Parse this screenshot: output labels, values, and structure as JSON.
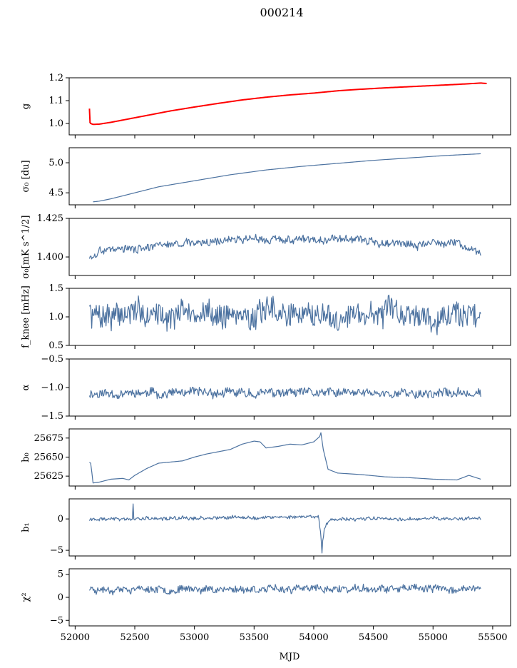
{
  "title": "000214",
  "colors": {
    "line": "#4c72a0",
    "fit": "#ff0000",
    "axis": "#000000"
  },
  "chart_data": {
    "type": "line",
    "title": "000214",
    "xlabel": "MJD",
    "xlim": [
      51950,
      55650
    ],
    "xticks": [
      52000,
      52500,
      53000,
      53500,
      54000,
      54500,
      55000,
      55500
    ],
    "xticklabels": [
      "52000",
      "52500",
      "53000",
      "53500",
      "54000",
      "54500",
      "55000",
      "55500"
    ],
    "panels": [
      {
        "id": "g",
        "ylabel": "g",
        "ylim": [
          0.95,
          1.2
        ],
        "yticks": [
          1.0,
          1.1,
          1.2
        ],
        "yticklabels": [
          "1.0",
          "1.1",
          "1.2"
        ],
        "kind": "smooth",
        "series": [
          {
            "x": [
              52120,
              52130,
              52150,
              52200,
              52300,
              52400,
              52600,
              52800,
              53000,
              53200,
              53400,
              53600,
              53800,
              54000,
              54200,
              54400,
              54600,
              54800,
              55000,
              55200,
              55400
            ],
            "values": [
              1.005,
              1.0,
              0.996,
              0.997,
              1.005,
              1.015,
              1.035,
              1.055,
              1.072,
              1.088,
              1.103,
              1.115,
              1.125,
              1.133,
              1.143,
              1.15,
              1.156,
              1.161,
              1.166,
              1.171,
              1.176
            ]
          },
          {
            "name": "fit",
            "color": "#ff0000",
            "x": [
              52120,
              52125,
              52130,
              52150,
              52200,
              52300,
              52400,
              52600,
              52800,
              53000,
              53200,
              53400,
              53600,
              53800,
              54000,
              54200,
              54400,
              54600,
              54800,
              55000,
              55200,
              55400,
              55450
            ],
            "values": [
              1.065,
              1.005,
              1.0,
              0.996,
              0.997,
              1.005,
              1.015,
              1.035,
              1.055,
              1.072,
              1.088,
              1.103,
              1.115,
              1.125,
              1.133,
              1.143,
              1.15,
              1.156,
              1.161,
              1.166,
              1.171,
              1.177,
              1.175
            ]
          }
        ]
      },
      {
        "id": "sigma0-du",
        "ylabel": "σ₀ [du]",
        "ylim": [
          4.3,
          5.25
        ],
        "yticks": [
          4.5,
          5.0
        ],
        "yticklabels": [
          "4.5",
          "5.0"
        ],
        "kind": "smooth",
        "series": [
          {
            "x": [
              52150,
              52200,
              52300,
              52500,
              52700,
              53000,
              53300,
              53600,
              53900,
              54200,
              54500,
              54800,
              55100,
              55400
            ],
            "values": [
              4.35,
              4.36,
              4.4,
              4.5,
              4.6,
              4.7,
              4.8,
              4.88,
              4.94,
              4.99,
              5.04,
              5.08,
              5.12,
              5.15
            ]
          }
        ]
      },
      {
        "id": "sigma0-mk",
        "ylabel": "σ₀[mK s^1/2]",
        "ylim": [
          1.388,
          1.425
        ],
        "yticks": [
          1.4,
          1.425
        ],
        "yticklabels": [
          "1.400",
          "1.425"
        ],
        "kind": "noisy",
        "noise": 0.0022,
        "seed": 3,
        "series": [
          {
            "x": [
              52120,
              52150,
              52200,
              52300,
              52500,
              52800,
              53100,
              53400,
              53700,
              54000,
              54300,
              54600,
              54900,
              55200,
              55400
            ],
            "values": [
              1.399,
              1.399,
              1.404,
              1.406,
              1.405,
              1.408,
              1.41,
              1.412,
              1.411,
              1.412,
              1.412,
              1.409,
              1.408,
              1.41,
              1.403
            ]
          }
        ]
      },
      {
        "id": "fknee",
        "ylabel": "f_knee [mHz]",
        "ylim": [
          0.5,
          1.5
        ],
        "yticks": [
          0.5,
          1.0,
          1.5
        ],
        "yticklabels": [
          "0.5",
          "1.0",
          "1.5"
        ],
        "kind": "noisy",
        "noise": 0.2,
        "seed": 7,
        "series": [
          {
            "x": [
              52120,
              55400
            ],
            "values": [
              1.05,
              1.05
            ]
          }
        ]
      },
      {
        "id": "alpha",
        "ylabel": "α",
        "ylim": [
          -1.5,
          -0.5
        ],
        "yticks": [
          -1.5,
          -1.0,
          -0.5
        ],
        "yticklabels": [
          "−1.5",
          "−1.0",
          "−0.5"
        ],
        "kind": "noisy",
        "noise": 0.07,
        "seed": 11,
        "series": [
          {
            "x": [
              52120,
              55400
            ],
            "values": [
              -1.1,
              -1.1
            ]
          }
        ]
      },
      {
        "id": "b0",
        "ylabel": "b₀",
        "ylim": [
          25612,
          25687
        ],
        "yticks": [
          25625,
          25650,
          25675
        ],
        "yticklabels": [
          "25625",
          "25650",
          "25675"
        ],
        "kind": "smooth",
        "series": [
          {
            "x": [
              52120,
              52130,
              52140,
              52150,
              52200,
              52300,
              52400,
              52450,
              52500,
              52600,
              52700,
              52900,
              53000,
              53100,
              53200,
              53300,
              53400,
              53500,
              53550,
              53600,
              53700,
              53800,
              53900,
              54000,
              54050,
              54060,
              54080,
              54120,
              54200,
              54400,
              54600,
              54800,
              55000,
              55200,
              55250,
              55300,
              55400
            ],
            "values": [
              25643,
              25642,
              25630,
              25616,
              25617,
              25621,
              25622,
              25620,
              25626,
              25635,
              25642,
              25645,
              25650,
              25654,
              25657,
              25660,
              25667,
              25671,
              25670,
              25662,
              25664,
              25667,
              25666,
              25670,
              25677,
              25682,
              25660,
              25634,
              25629,
              25627,
              25624,
              25623,
              25621,
              25620,
              25623,
              25626,
              25621
            ]
          }
        ]
      },
      {
        "id": "b1",
        "ylabel": "b₁",
        "ylim": [
          -5.9,
          3.2
        ],
        "yticks": [
          -5,
          0
        ],
        "yticklabels": [
          "−5",
          "0"
        ],
        "kind": "noisy",
        "noise": 0.25,
        "seed": 19,
        "series": [
          {
            "x": [
              52120,
              52480,
              52485,
              52490,
              52495,
              54040,
              54060,
              54070,
              54075,
              54090,
              54120,
              54200,
              55400
            ],
            "values": [
              0.0,
              0.0,
              3.0,
              0.0,
              0.0,
              0.4,
              -2.5,
              -5.5,
              -3.5,
              -1.5,
              -0.4,
              0.0,
              0.0
            ]
          }
        ]
      },
      {
        "id": "chi2",
        "ylabel": "χ²",
        "ylim": [
          -6.2,
          6.2
        ],
        "yticks": [
          -5,
          0,
          5
        ],
        "yticklabels": [
          "−5",
          "0",
          "5"
        ],
        "kind": "noisy",
        "noise": 0.7,
        "seed": 23,
        "series": [
          {
            "x": [
              52120,
              55400
            ],
            "values": [
              1.8,
              1.8
            ]
          }
        ]
      }
    ]
  }
}
